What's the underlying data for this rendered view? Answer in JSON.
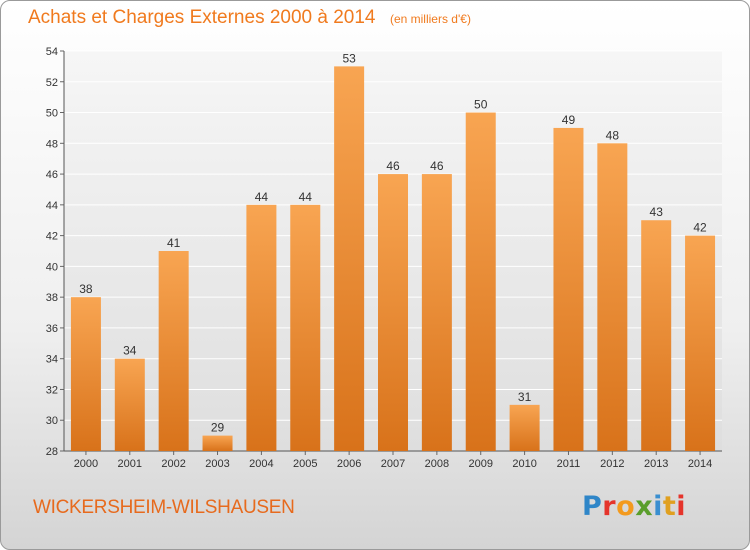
{
  "chart_data": {
    "type": "bar",
    "title": "Achats et Charges Externes 2000 à 2014",
    "subtitle": "(en milliers d'€)",
    "categories": [
      "2000",
      "2001",
      "2002",
      "2003",
      "2004",
      "2005",
      "2006",
      "2007",
      "2008",
      "2009",
      "2010",
      "2011",
      "2012",
      "2013",
      "2014"
    ],
    "values": [
      38,
      34,
      41,
      29,
      44,
      44,
      53,
      46,
      46,
      50,
      31,
      49,
      48,
      43,
      42
    ],
    "ylim": [
      28,
      54
    ],
    "yticks": [
      "28",
      "30",
      "32",
      "34",
      "36",
      "38",
      "40",
      "42",
      "44",
      "46",
      "48",
      "50",
      "52",
      "54"
    ],
    "grid": true,
    "bar_color": "#f0912f",
    "bar_color_light": "#f8a552",
    "bar_color_dark": "#d8721a"
  },
  "place_name": "WICKERSHEIM-WILSHAUSEN",
  "brand": {
    "name": "Proxiti",
    "letters": [
      "P",
      "r",
      "o",
      "x",
      "i",
      "t",
      "i"
    ]
  },
  "colors": {
    "accent": "#f07a1e"
  }
}
